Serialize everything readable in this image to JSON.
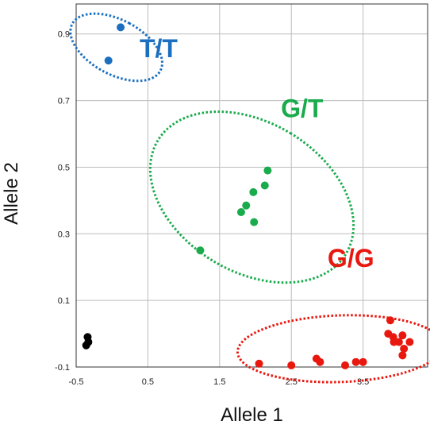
{
  "chart_data": {
    "type": "scatter",
    "xlabel": "Allele 1",
    "ylabel": "Allele 2",
    "xlim": [
      -0.5,
      4.4
    ],
    "ylim": [
      -0.1,
      0.99
    ],
    "x_ticks": [
      {
        "value": -0.5,
        "label": "-0.5"
      },
      {
        "value": 0.5,
        "label": "0.5"
      },
      {
        "value": 1.5,
        "label": "1.5"
      },
      {
        "value": 2.5,
        "label": "2.5"
      },
      {
        "value": 3.5,
        "label": "3.5"
      }
    ],
    "y_ticks": [
      {
        "value": -0.1,
        "label": "-0.1"
      },
      {
        "value": 0.1,
        "label": "0.1"
      },
      {
        "value": 0.3,
        "label": "0.3"
      },
      {
        "value": 0.5,
        "label": "0.5"
      },
      {
        "value": 0.7,
        "label": "0.7"
      },
      {
        "value": 0.9,
        "label": "0.9"
      }
    ],
    "grid": true,
    "clusters": [
      {
        "name": "T/T",
        "color": "#1a6fc0",
        "label_pos": [
          0.65,
          0.83
        ],
        "ellipse": {
          "cx": 0.06,
          "cy": 0.86,
          "rx": 0.38,
          "ry": 0.15,
          "rotation": 62
        },
        "points": [
          [
            0.12,
            0.92
          ],
          [
            -0.05,
            0.82
          ]
        ]
      },
      {
        "name": "G/T",
        "color": "#1aab4c",
        "label_pos": [
          2.65,
          0.65
        ],
        "ellipse": {
          "cx": 1.95,
          "cy": 0.41,
          "rx": 1.04,
          "ry": 0.33,
          "rotation": 59
        },
        "points": [
          [
            1.23,
            0.25
          ],
          [
            1.8,
            0.365
          ],
          [
            1.87,
            0.385
          ],
          [
            1.97,
            0.425
          ],
          [
            2.13,
            0.445
          ],
          [
            2.17,
            0.49
          ],
          [
            1.98,
            0.335
          ]
        ]
      },
      {
        "name": "G/G",
        "color": "#e8180f",
        "label_pos": [
          3.33,
          0.2
        ],
        "ellipse": {
          "cx": 3.18,
          "cy": -0.045,
          "rx": 1.43,
          "ry": 0.1,
          "rotation": 2
        },
        "points": [
          [
            2.05,
            -0.09
          ],
          [
            2.5,
            -0.095
          ],
          [
            2.85,
            -0.075
          ],
          [
            2.9,
            -0.085
          ],
          [
            3.25,
            -0.095
          ],
          [
            3.4,
            -0.085
          ],
          [
            3.5,
            -0.085
          ],
          [
            3.88,
            0.04
          ],
          [
            3.85,
            0.0
          ],
          [
            3.92,
            -0.01
          ],
          [
            3.93,
            -0.025
          ],
          [
            4.0,
            -0.025
          ],
          [
            4.05,
            -0.005
          ],
          [
            4.07,
            -0.045
          ],
          [
            4.05,
            -0.065
          ],
          [
            4.15,
            -0.025
          ]
        ]
      },
      {
        "name": "",
        "color": "#000000",
        "label_pos": null,
        "ellipse": null,
        "points": [
          [
            -0.33,
            -0.025
          ],
          [
            -0.34,
            -0.01
          ],
          [
            -0.36,
            -0.035
          ]
        ]
      }
    ]
  }
}
